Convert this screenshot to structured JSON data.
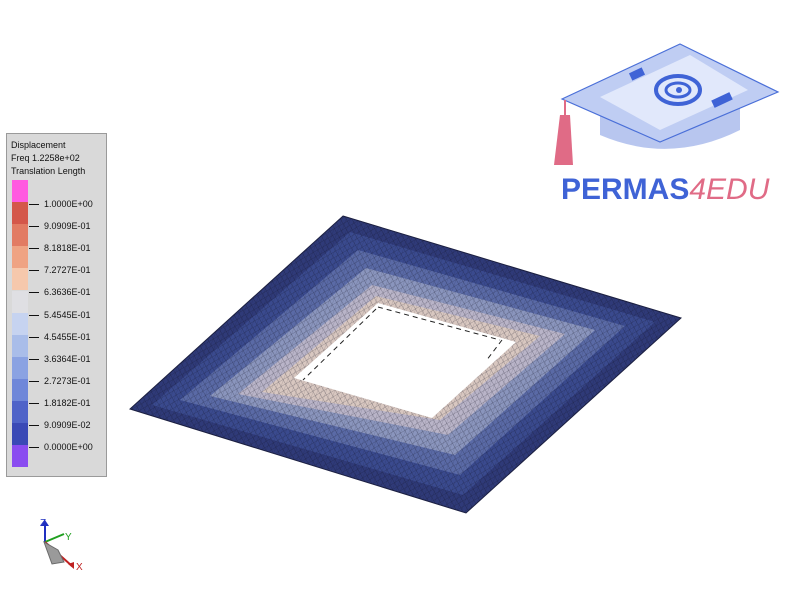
{
  "legend": {
    "title_lines": [
      "Displacement",
      "Freq 1.2258e+02",
      "Translation Length"
    ],
    "entries": [
      {
        "label": "1.0000E+00",
        "color": "#ff5ae0"
      },
      {
        "label": "9.0909E-01",
        "color": "#d4574a"
      },
      {
        "label": "8.1818E-01",
        "color": "#e27b63"
      },
      {
        "label": "7.2727E-01",
        "color": "#efa383"
      },
      {
        "label": "6.3636E-01",
        "color": "#f6c8ac"
      },
      {
        "label": "5.4545E-01",
        "color": "#dfdfe3"
      },
      {
        "label": "4.5455E-01",
        "color": "#c6d3f0"
      },
      {
        "label": "3.6364E-01",
        "color": "#a9bde9"
      },
      {
        "label": "2.7273E-01",
        "color": "#8aa2e2"
      },
      {
        "label": "1.8182E-01",
        "color": "#6f87d9"
      },
      {
        "label": "9.0909E-02",
        "color": "#4f63c8"
      },
      {
        "label": "0.0000E+00",
        "color": "#3a49b6"
      }
    ],
    "bottom_color": "#8a4cf0"
  },
  "logo": {
    "part_a": "PERMAS",
    "part_b": "4EDU",
    "color_a": "#3f63d6",
    "color_b": "#e06b86"
  },
  "axes": {
    "z": "Z",
    "y": "Y",
    "x": "X"
  }
}
